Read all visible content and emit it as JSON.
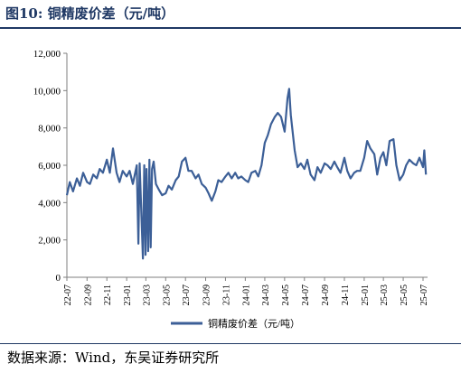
{
  "header": {
    "title": "图10:  铜精废价差（元/吨）"
  },
  "footer": {
    "source": "数据来源：Wind，东吴证券研究所"
  },
  "colors": {
    "line": "#3c5f97",
    "axis": "#7f7f7f",
    "text": "#000000",
    "title": "#1f3864"
  },
  "chart_data": {
    "type": "line",
    "title": "",
    "xlabel": "",
    "ylabel": "",
    "ylim": [
      0,
      12000
    ],
    "yticks": [
      "0",
      "2,000",
      "4,000",
      "6,000",
      "8,000",
      "10,000",
      "12,000"
    ],
    "xticks": [
      "22-07",
      "22-09",
      "22-11",
      "23-01",
      "23-03",
      "23-05",
      "23-07",
      "23-09",
      "23-11",
      "24-01",
      "24-03",
      "24-05",
      "24-07",
      "24-09",
      "24-11",
      "25-01",
      "25-03",
      "25-05",
      "25-07"
    ],
    "legend": "bottom",
    "grid": false,
    "series": [
      {
        "name": "铜精废价差（元/吨）",
        "x": [
          "2022-07-01",
          "2022-07-10",
          "2022-07-20",
          "2022-08-01",
          "2022-08-10",
          "2022-08-20",
          "2022-09-01",
          "2022-09-10",
          "2022-09-20",
          "2022-10-01",
          "2022-10-10",
          "2022-10-20",
          "2022-11-01",
          "2022-11-10",
          "2022-11-20",
          "2022-12-01",
          "2022-12-10",
          "2022-12-20",
          "2023-01-01",
          "2023-01-10",
          "2023-01-20",
          "2023-02-01",
          "2023-02-06",
          "2023-02-10",
          "2023-02-20",
          "2023-02-24",
          "2023-02-28",
          "2023-03-03",
          "2023-03-08",
          "2023-03-12",
          "2023-03-16",
          "2023-03-20",
          "2023-03-25",
          "2023-04-01",
          "2023-04-10",
          "2023-04-20",
          "2023-05-01",
          "2023-05-10",
          "2023-05-20",
          "2023-06-01",
          "2023-06-10",
          "2023-06-20",
          "2023-07-01",
          "2023-07-10",
          "2023-07-20",
          "2023-08-01",
          "2023-08-10",
          "2023-08-20",
          "2023-09-01",
          "2023-09-10",
          "2023-09-20",
          "2023-10-01",
          "2023-10-10",
          "2023-10-20",
          "2023-11-01",
          "2023-11-10",
          "2023-11-20",
          "2023-12-01",
          "2023-12-10",
          "2023-12-20",
          "2024-01-01",
          "2024-01-10",
          "2024-01-20",
          "2024-02-01",
          "2024-02-10",
          "2024-02-20",
          "2024-03-01",
          "2024-03-10",
          "2024-03-20",
          "2024-04-01",
          "2024-04-10",
          "2024-04-20",
          "2024-05-01",
          "2024-05-10",
          "2024-05-15",
          "2024-05-20",
          "2024-06-01",
          "2024-06-10",
          "2024-06-20",
          "2024-07-01",
          "2024-07-10",
          "2024-07-20",
          "2024-08-01",
          "2024-08-10",
          "2024-08-20",
          "2024-09-01",
          "2024-09-10",
          "2024-09-20",
          "2024-10-01",
          "2024-10-10",
          "2024-10-20",
          "2024-11-01",
          "2024-11-10",
          "2024-11-20",
          "2024-12-01",
          "2024-12-10",
          "2024-12-20",
          "2025-01-01",
          "2025-01-10",
          "2025-01-20",
          "2025-02-01",
          "2025-02-10",
          "2025-02-20",
          "2025-03-01",
          "2025-03-10",
          "2025-03-20",
          "2025-04-01",
          "2025-04-10",
          "2025-04-20",
          "2025-05-01",
          "2025-05-10",
          "2025-05-20",
          "2025-06-01",
          "2025-06-10",
          "2025-06-20",
          "2025-07-01",
          "2025-07-05",
          "2025-07-10"
        ],
        "y": [
          4400,
          5100,
          4600,
          5300,
          4900,
          5600,
          5100,
          5000,
          5500,
          5300,
          5800,
          5600,
          6300,
          5600,
          6900,
          5600,
          5100,
          5700,
          5400,
          5700,
          5000,
          6000,
          1800,
          6100,
          1000,
          6000,
          1200,
          5800,
          1400,
          6300,
          1600,
          5800,
          6200,
          5000,
          4700,
          4400,
          4500,
          4900,
          4700,
          5200,
          5400,
          6200,
          6400,
          5700,
          5700,
          5300,
          5500,
          5000,
          4800,
          4500,
          4100,
          4600,
          5200,
          5100,
          5400,
          5600,
          5300,
          5600,
          5300,
          5400,
          5200,
          5100,
          5600,
          5700,
          5400,
          6000,
          7200,
          7600,
          8200,
          8600,
          8800,
          8600,
          7800,
          9600,
          10100,
          8700,
          6800,
          5900,
          6100,
          5800,
          6300,
          5500,
          5200,
          5900,
          5600,
          6100,
          6000,
          5800,
          6200,
          5900,
          5600,
          6400,
          5700,
          5300,
          5600,
          5700,
          5700,
          6400,
          7300,
          6900,
          6600,
          5500,
          6400,
          6700,
          6000,
          7300,
          7400,
          6000,
          5200,
          5500,
          6000,
          6300,
          6100,
          6000,
          6400,
          5900,
          6800,
          5500
        ]
      }
    ]
  }
}
